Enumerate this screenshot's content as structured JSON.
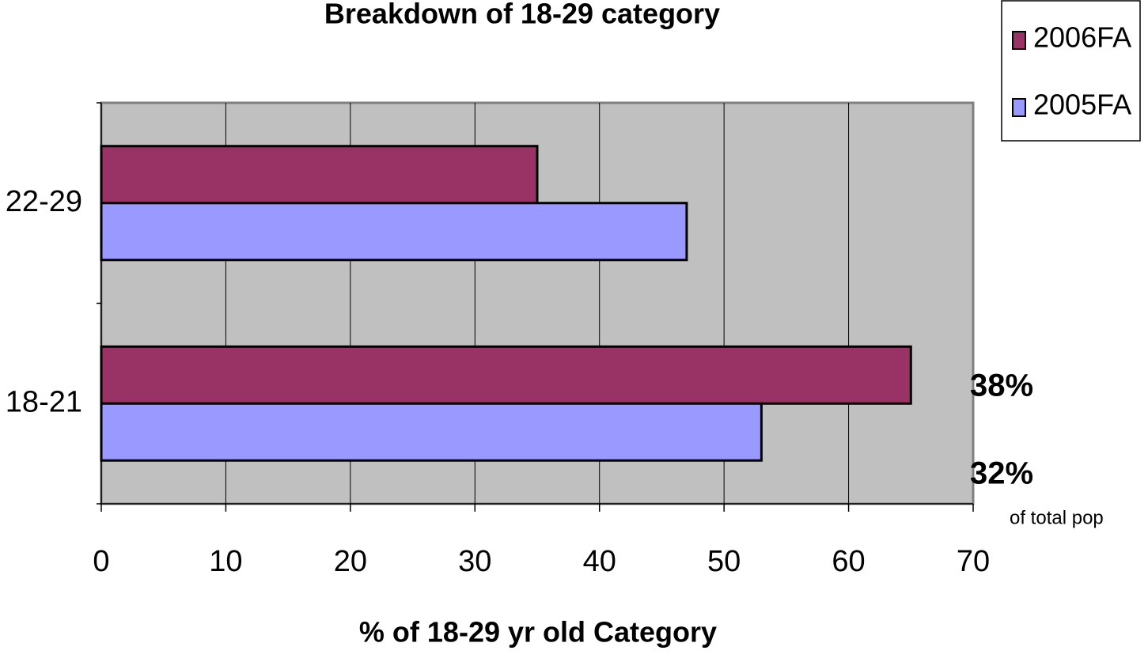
{
  "chart_data": {
    "type": "hbar",
    "title": "Breakdown of 18-29 category",
    "x_label": "% of 18-29 yr old Category",
    "categories": [
      "22-29",
      "18-21"
    ],
    "series": [
      {
        "name": "2006FA",
        "color": "#993366",
        "values": [
          35,
          65
        ]
      },
      {
        "name": "2005FA",
        "color": "#9999ff",
        "values": [
          47,
          53
        ]
      }
    ],
    "xlim": [
      0,
      70
    ],
    "xticks": [
      0,
      10,
      20,
      30,
      40,
      50,
      60,
      70
    ],
    "grid": true,
    "plot_background": "#c0c0c0",
    "legend": "top-right",
    "annotations": [
      "38%",
      "32%",
      "of total pop"
    ]
  }
}
